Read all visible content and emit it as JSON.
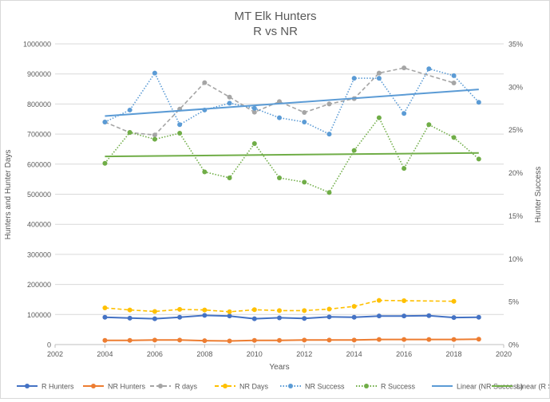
{
  "chart_data": {
    "type": "line",
    "title": "MT Elk Hunters",
    "subtitle": "R vs NR",
    "xlabel": "Years",
    "ylabel": "Hunters and Hunter Days",
    "y2label": "Hunter Success",
    "xlim": [
      2002,
      2020
    ],
    "ylim": [
      0,
      1000000
    ],
    "y2lim": [
      0,
      35
    ],
    "x_ticks": [
      "2002",
      "2004",
      "2006",
      "2008",
      "2010",
      "2012",
      "2014",
      "2016",
      "2018",
      "2020"
    ],
    "y_ticks": [
      "0",
      "100000",
      "200000",
      "300000",
      "400000",
      "500000",
      "600000",
      "700000",
      "800000",
      "900000",
      "1000000"
    ],
    "y2_ticks": [
      "0%",
      "5%",
      "10%",
      "15%",
      "20%",
      "25%",
      "30%",
      "35%"
    ],
    "grid": "horizontal",
    "legend_position": "bottom",
    "series": [
      {
        "name": "R Hunters",
        "axis": "left",
        "color": "#4472c4",
        "style": "solid",
        "marker": "circle",
        "x": [
          2004,
          2005,
          2006,
          2007,
          2008,
          2009,
          2010,
          2011,
          2012,
          2013,
          2014,
          2015,
          2016,
          2017,
          2018,
          2019
        ],
        "y": [
          91000,
          88000,
          86000,
          91000,
          97000,
          95000,
          86000,
          89000,
          87000,
          92000,
          91000,
          95000,
          95000,
          96000,
          90000,
          91000
        ]
      },
      {
        "name": "NR Hunters",
        "axis": "left",
        "color": "#ed7d31",
        "style": "solid",
        "marker": "circle",
        "x": [
          2004,
          2005,
          2006,
          2007,
          2008,
          2009,
          2010,
          2011,
          2012,
          2013,
          2014,
          2015,
          2016,
          2017,
          2018,
          2019
        ],
        "y": [
          14000,
          14000,
          15000,
          15000,
          13000,
          12000,
          14000,
          14000,
          15000,
          15000,
          15000,
          17000,
          17000,
          17000,
          17000,
          18000
        ]
      },
      {
        "name": "R days",
        "axis": "left",
        "color": "#a5a5a5",
        "style": "dashed",
        "marker": "circle",
        "x": [
          2004,
          2005,
          2006,
          2007,
          2008,
          2009,
          2010,
          2011,
          2012,
          2013,
          2014,
          2015,
          2016,
          2018
        ],
        "y": [
          740000,
          705000,
          697000,
          783000,
          871000,
          823000,
          773000,
          808000,
          772000,
          800000,
          818000,
          903000,
          920000,
          870000
        ]
      },
      {
        "name": "NR Days",
        "axis": "left",
        "color": "#ffc000",
        "style": "dashed",
        "marker": "circle",
        "x": [
          2004,
          2005,
          2006,
          2007,
          2008,
          2009,
          2010,
          2011,
          2012,
          2013,
          2014,
          2015,
          2016,
          2018
        ],
        "y": [
          122000,
          115000,
          110000,
          117000,
          115000,
          109000,
          116000,
          113000,
          113000,
          118000,
          127000,
          147000,
          146000,
          144000
        ]
      },
      {
        "name": "NR Success",
        "axis": "right",
        "color": "#5b9bd5",
        "style": "dotted",
        "marker": "circle",
        "x": [
          2004,
          2005,
          2006,
          2007,
          2008,
          2009,
          2010,
          2011,
          2012,
          2013,
          2014,
          2015,
          2016,
          2017,
          2018,
          2019
        ],
        "y": [
          25.9,
          27.3,
          31.6,
          25.6,
          27.3,
          28.1,
          27.5,
          26.4,
          25.9,
          24.5,
          31.0,
          31.0,
          26.9,
          32.1,
          31.3,
          28.2
        ]
      },
      {
        "name": "R Success",
        "axis": "right",
        "color": "#70ad47",
        "style": "dotted",
        "marker": "circle",
        "x": [
          2004,
          2005,
          2006,
          2007,
          2008,
          2009,
          2010,
          2011,
          2012,
          2013,
          2014,
          2015,
          2016,
          2017,
          2018,
          2019
        ],
        "y": [
          21.1,
          24.7,
          23.9,
          24.6,
          20.1,
          19.4,
          23.4,
          19.4,
          18.9,
          17.7,
          22.6,
          26.4,
          20.5,
          25.6,
          24.1,
          21.6
        ]
      },
      {
        "name": "Linear (NR Success)",
        "axis": "right",
        "color": "#5b9bd5",
        "style": "trend",
        "marker": "none",
        "x": [
          2004,
          2019
        ],
        "y": [
          26.6,
          29.7
        ]
      },
      {
        "name": "Linear (R Success)",
        "axis": "right",
        "color": "#70ad47",
        "style": "trend",
        "marker": "none",
        "x": [
          2004,
          2019
        ],
        "y": [
          21.9,
          22.3
        ]
      }
    ]
  }
}
